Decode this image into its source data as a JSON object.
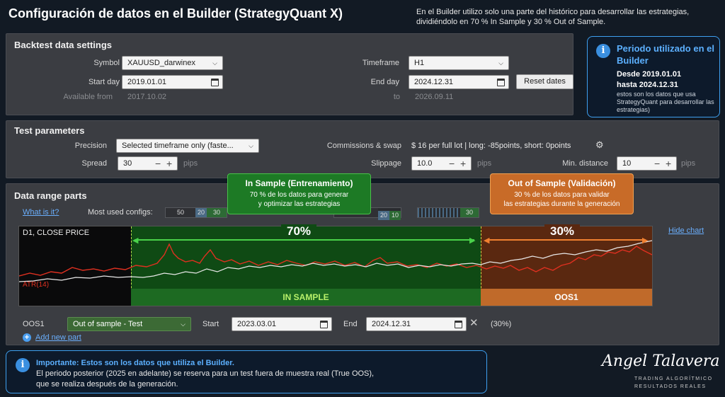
{
  "header": {
    "title": "Configuración de datos en el Builder (StrategyQuant X)",
    "intro": "En el Builder utilizo solo una parte del histórico para desarrollar las estrategias, dividiéndolo en 70 % In Sample y 30 % Out of Sample."
  },
  "backtest": {
    "title": "Backtest data settings",
    "symbol_label": "Symbol",
    "symbol_value": "XAUUSD_darwinex",
    "timeframe_label": "Timeframe",
    "timeframe_value": "H1",
    "start_label": "Start day",
    "start_value": "2019.01.01",
    "end_label": "End day",
    "end_value": "2024.12.31",
    "reset_label": "Reset dates",
    "available_label": "Available from",
    "available_value": "2017.10.02",
    "to_label": "to",
    "to_value": "2026.09.11"
  },
  "period_info": {
    "title": "Periodo utilizado en el Builder",
    "from": "Desde 2019.01.01",
    "to": "hasta 2024.12.31",
    "desc": "estos son los datos que usa StrategyQuant para desarrollar las estrategias)"
  },
  "test": {
    "title": "Test parameters",
    "precision_label": "Precision",
    "precision_value": "Selected timeframe only (faste...",
    "commissions_label": "Commissions & swap",
    "commissions_value": "$ 16 per full lot  |  long: -85points, short: 0points",
    "spread_label": "Spread",
    "spread_value": "30",
    "spread_unit": "pips",
    "slippage_label": "Slippage",
    "slippage_value": "10.0",
    "slippage_unit": "pips",
    "mindist_label": "Min. distance",
    "mindist_value": "10",
    "mindist_unit": "pips"
  },
  "range": {
    "title": "Data range parts",
    "what_link": "What is it?",
    "most_used": "Most used configs:",
    "cfg1": [
      "50",
      "20",
      "30"
    ],
    "cfg2": [
      "20",
      "10"
    ],
    "cfg3": "30",
    "hide_chart": "Hide chart",
    "chart_label": "D1, CLOSE PRICE",
    "atr_label": "ATR(14)",
    "pct_is": "70%",
    "pct_oos": "30%",
    "is_label": "IN SAMPLE",
    "oos_label": "OOS1"
  },
  "callout_is": {
    "title": "In Sample (Entrenamiento)",
    "line1": "70 % de los datos para generar",
    "line2": "y optimizar las estrategias"
  },
  "callout_oos": {
    "title": "Out of Sample (Validación)",
    "line1": "30 % de los datos para validar",
    "line2": "las estrategias durante la generación"
  },
  "oos_row": {
    "name": "OOS1",
    "type": "Out of sample - Test",
    "start_label": "Start",
    "start_value": "2023.03.01",
    "end_label": "End",
    "end_value": "2024.12.31",
    "pct": "(30%)",
    "add_link": "Add new part"
  },
  "important": {
    "title": "Importante: Estos son los datos que utiliza el Builder.",
    "line1": "El periodo posterior (2025 en adelante) se reserva para un test fuera de muestra real (True OOS),",
    "line2": "que se realiza después de la generación."
  },
  "brand": {
    "name": "Angel Talavera",
    "line1": "TRADING ALGORÍTMICO",
    "line2": "RESULTADOS REALES"
  },
  "colors": {
    "accent": "#3ea0f0",
    "in_sample": "#1f7a2a",
    "oos": "#d9742a"
  }
}
